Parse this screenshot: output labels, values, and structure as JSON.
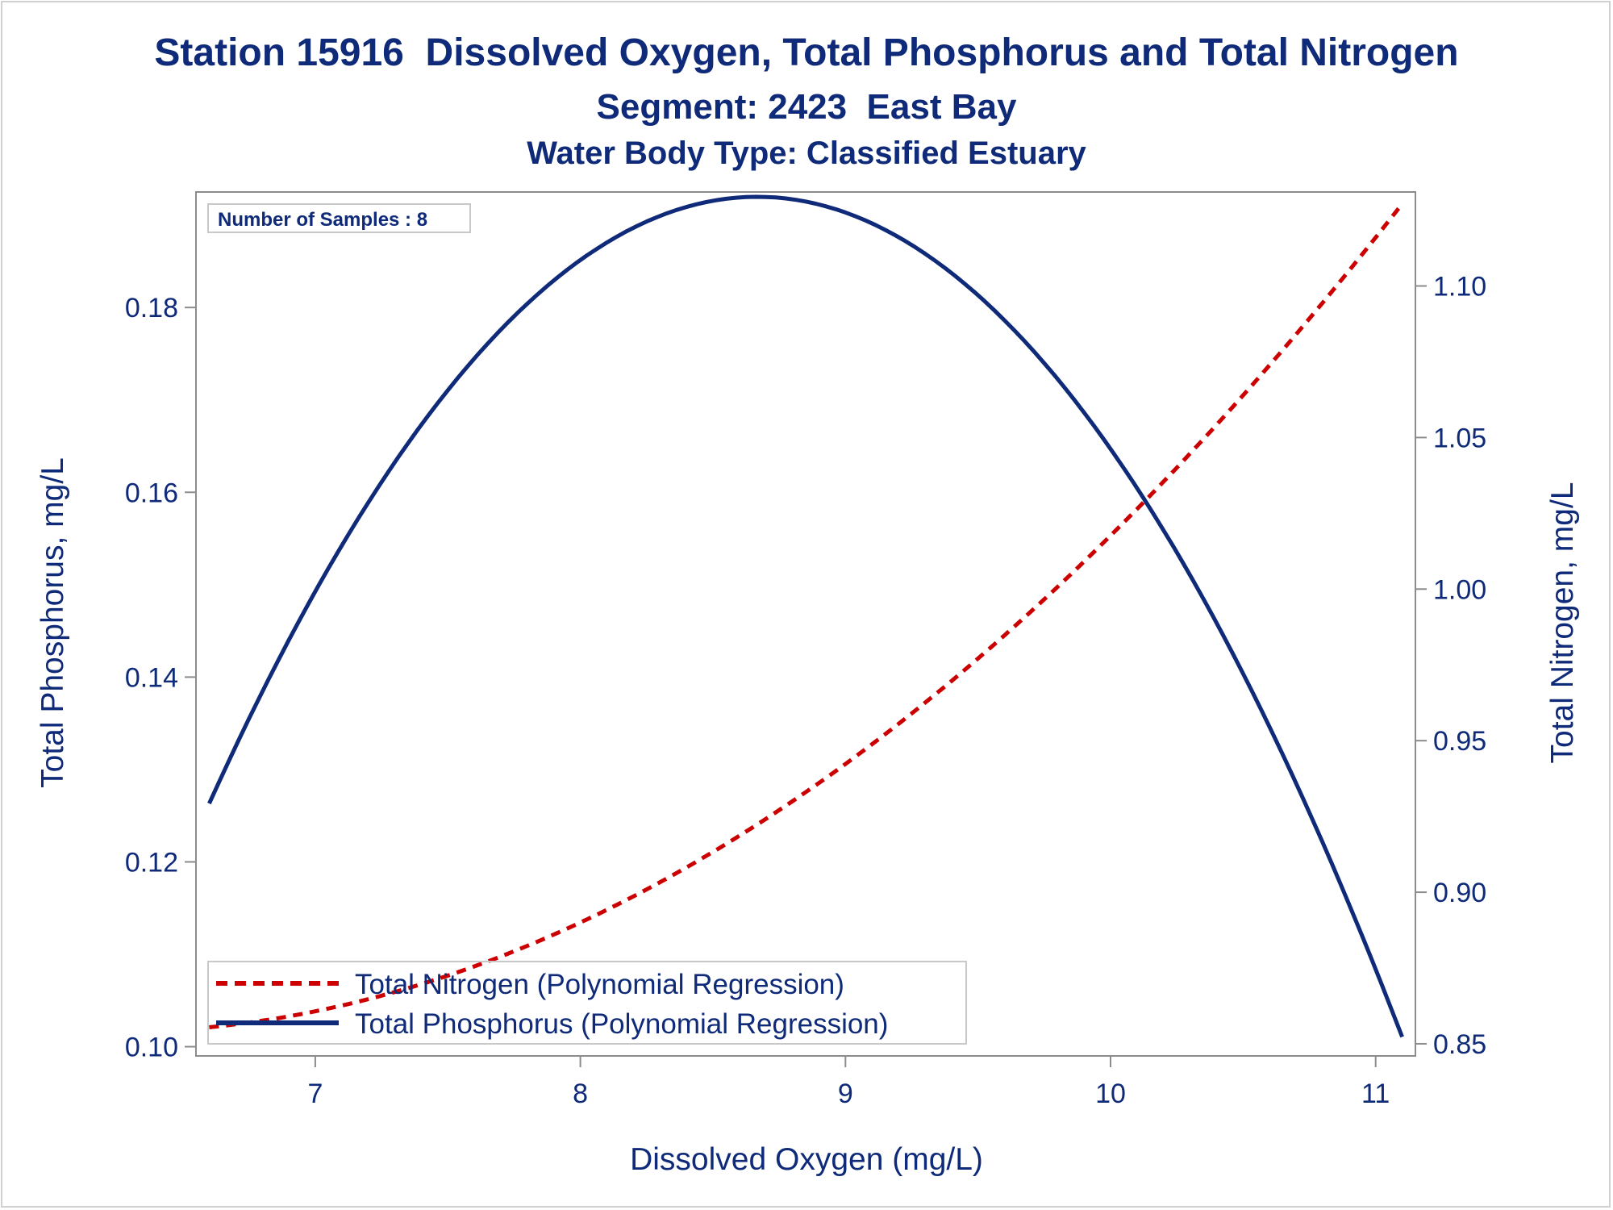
{
  "colors": {
    "text": "#0e2a78",
    "nitrogen": "#cc0000",
    "phosphorus": "#0e2a78",
    "axis": "#8c8c8c",
    "border": "#d0d0d0"
  },
  "header": {
    "title": "Station 15916  Dissolved Oxygen, Total Phosphorus and Total Nitrogen",
    "subtitle": "Segment: 2423  East Bay",
    "subtitle2": "Water Body Type: Classified Estuary"
  },
  "annotation": "Number of Samples : 8",
  "chart_data": {
    "type": "line",
    "title": "Station 15916  Dissolved Oxygen, Total Phosphorus and Total Nitrogen",
    "xlabel": "Dissolved Oxygen (mg/L)",
    "ylabel": "Total Phosphorus, mg/L",
    "y2label": "Total Nitrogen, mg/L",
    "xlim": [
      6.55,
      11.15
    ],
    "ylim": [
      0.099,
      0.1925
    ],
    "y2lim": [
      0.846,
      1.131
    ],
    "grid": false,
    "legend_position": "bottom-left, inside",
    "x_ticks": [
      "7",
      "8",
      "9",
      "10",
      "11"
    ],
    "y_ticks": [
      "0.10",
      "0.12",
      "0.14",
      "0.16",
      "0.18"
    ],
    "y2_ticks": [
      "0.85",
      "0.90",
      "0.95",
      "1.00",
      "1.05",
      "1.10"
    ],
    "series": [
      {
        "name": "Total Nitrogen (Polynomial Regression)",
        "axis": "y2",
        "style": "dashed",
        "x": [
          6.6,
          7.0,
          7.5,
          8.0,
          8.5,
          9.0,
          9.5,
          10.0,
          10.5,
          11.1
        ],
        "y": [
          0.857,
          0.86,
          0.871,
          0.889,
          0.913,
          0.944,
          0.979,
          1.018,
          1.061,
          1.128
        ]
      },
      {
        "name": "Total Phosphorus (Polynomial Regression)",
        "axis": "y",
        "style": "solid",
        "x": [
          6.6,
          7.0,
          7.5,
          8.0,
          8.5,
          8.7,
          9.0,
          9.5,
          10.0,
          10.5,
          11.1
        ],
        "y": [
          0.1245,
          0.1515,
          0.1725,
          0.1845,
          0.1905,
          0.191,
          0.1895,
          0.1815,
          0.166,
          0.1415,
          0.1
        ]
      }
    ]
  }
}
